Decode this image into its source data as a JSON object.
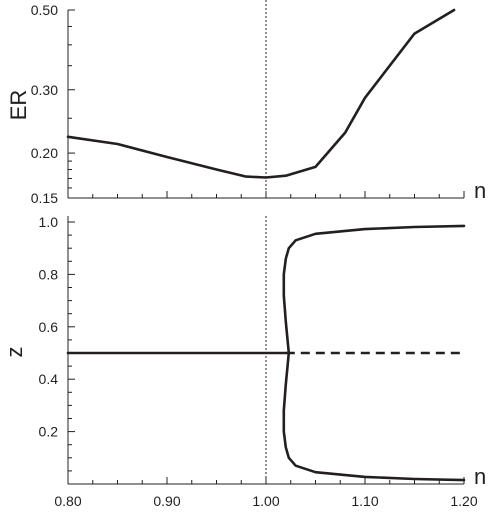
{
  "chart_data": [
    {
      "type": "line",
      "xlabel": "n",
      "ylabel": "ER",
      "xlim": [
        0.8,
        1.2
      ],
      "ylim": [
        0.15,
        0.5
      ],
      "y_scale": "log",
      "yticks": [
        0.15,
        0.2,
        0.3,
        0.5
      ],
      "ytick_labels": [
        "0.15",
        "0.20",
        "0.30",
        "0.50"
      ],
      "reference_line_x": 1.0,
      "series": [
        {
          "style": "solid",
          "x": [
            0.8,
            0.85,
            0.9,
            0.95,
            0.98,
            1.0,
            1.02,
            1.05,
            1.08,
            1.1,
            1.15,
            1.19
          ],
          "y": [
            0.222,
            0.212,
            0.195,
            0.18,
            0.172,
            0.171,
            0.173,
            0.183,
            0.228,
            0.285,
            0.43,
            0.5
          ]
        }
      ]
    },
    {
      "type": "line",
      "xlabel": "n",
      "ylabel": "z",
      "xlim": [
        0.8,
        1.2
      ],
      "ylim": [
        0.0,
        1.0
      ],
      "xticks": [
        0.8,
        0.9,
        1.0,
        1.1,
        1.2
      ],
      "xtick_labels": [
        "0.80",
        "0.90",
        "1.00",
        "1.10",
        "1.20"
      ],
      "yticks": [
        0.2,
        0.4,
        0.6,
        0.8,
        1.0
      ],
      "ytick_labels": [
        "0.2",
        "0.4",
        "0.6",
        "0.8",
        "1.0"
      ],
      "reference_line_x": 1.0,
      "series": [
        {
          "style": "solid",
          "x": [
            0.8,
            1.02
          ],
          "y": [
            0.5,
            0.5
          ]
        },
        {
          "style": "dashed",
          "x": [
            1.02,
            1.2
          ],
          "y": [
            0.5,
            0.5
          ]
        },
        {
          "style": "solid",
          "x": [
            1.023,
            1.02,
            1.018,
            1.018,
            1.02,
            1.023,
            1.03,
            1.05,
            1.1,
            1.15,
            1.2
          ],
          "y": [
            0.5,
            0.62,
            0.72,
            0.8,
            0.86,
            0.9,
            0.93,
            0.955,
            0.973,
            0.981,
            0.985
          ]
        },
        {
          "style": "solid",
          "x": [
            1.023,
            1.02,
            1.018,
            1.018,
            1.02,
            1.023,
            1.03,
            1.05,
            1.1,
            1.15,
            1.2
          ],
          "y": [
            0.5,
            0.38,
            0.28,
            0.2,
            0.14,
            0.1,
            0.07,
            0.045,
            0.027,
            0.019,
            0.015
          ]
        }
      ]
    }
  ]
}
